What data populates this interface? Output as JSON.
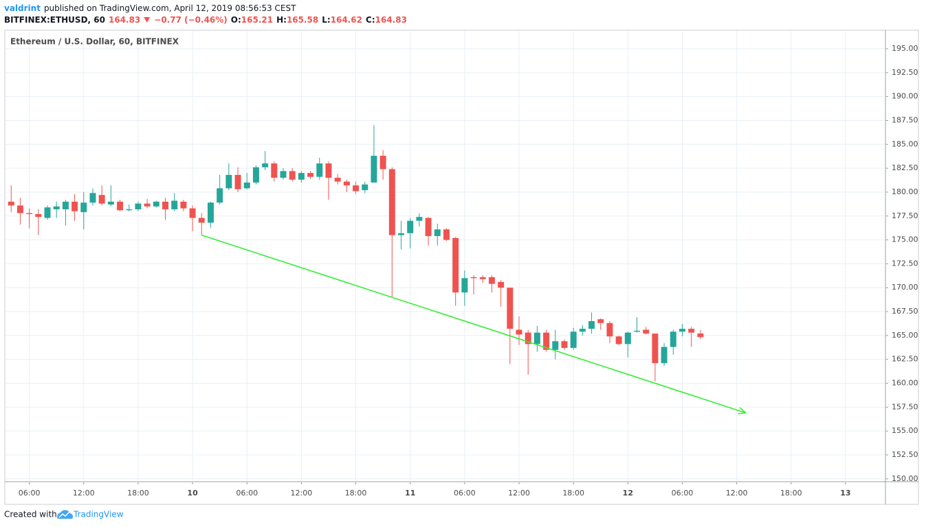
{
  "header": {
    "author": "valdrint",
    "published": "published on TradingView.com, April 12, 2019 08:56:53 CEST",
    "symbol": "BITFINEX:ETHUSD, 60",
    "last": "164.83",
    "change": "−0.77 (−0.46%)",
    "ohlc": [
      {
        "label": "O:",
        "value": "165.21"
      },
      {
        "label": "H:",
        "value": "165.58"
      },
      {
        "label": "L:",
        "value": "164.62"
      },
      {
        "label": "C:",
        "value": "164.83"
      }
    ]
  },
  "chart_data": {
    "type": "candlestick",
    "title": "Ethereum / U.S. Dollar, 60, BITFINEX",
    "up_color": "#26a69a",
    "down_color": "#ef5350",
    "grid": true,
    "x": [
      -20,
      -19,
      -18,
      -17,
      -16,
      -15,
      -14,
      -13,
      -12,
      -11,
      -10,
      -9,
      -8,
      -7,
      -6,
      -5,
      -4,
      -3,
      -2,
      -1,
      0,
      1,
      2,
      3,
      4,
      5,
      6,
      7,
      8,
      9,
      10,
      11,
      12,
      13,
      14,
      15,
      16,
      17,
      18,
      19,
      20,
      21,
      22,
      23,
      24,
      25,
      26,
      27,
      28,
      29,
      30,
      31,
      32,
      33,
      34,
      35,
      36,
      37,
      38,
      39,
      40,
      41,
      42,
      43,
      44,
      45,
      46,
      47,
      48,
      49,
      50,
      51,
      52,
      53,
      54,
      55,
      56
    ],
    "open": [
      179.0,
      178.6,
      177.8,
      177.7,
      177.3,
      178.2,
      178.2,
      179.0,
      177.9,
      178.9,
      179.7,
      178.7,
      179.0,
      178.1,
      178.2,
      178.8,
      178.5,
      179.0,
      178.2,
      179.0,
      178.3,
      177.3,
      176.8,
      178.9,
      180.4,
      181.8,
      180.4,
      181.0,
      182.6,
      183.0,
      181.5,
      182.2,
      181.3,
      182.0,
      181.6,
      183.0,
      181.5,
      181.1,
      180.7,
      180.2,
      181.0,
      183.8,
      182.4,
      175.5,
      175.7,
      177.0,
      177.3,
      175.4,
      176.1,
      175.2,
      169.5,
      171.1,
      171.1,
      171.1,
      170.6,
      170.0,
      165.6,
      165.3,
      164.1,
      165.3,
      163.5,
      164.4,
      163.7,
      165.4,
      165.7,
      166.7,
      166.3,
      164.9,
      164.1,
      165.4,
      165.6,
      165.2,
      162.1,
      163.8,
      165.4,
      165.7,
      165.21
    ],
    "high": [
      180.7,
      179.4,
      178.3,
      178.2,
      178.6,
      179.0,
      179.2,
      179.8,
      180.0,
      180.4,
      180.7,
      180.7,
      179.2,
      178.7,
      179.0,
      179.3,
      179.1,
      179.4,
      179.9,
      179.2,
      178.6,
      177.8,
      179.0,
      181.8,
      183.0,
      182.6,
      182.0,
      182.8,
      184.3,
      183.2,
      182.5,
      182.5,
      182.2,
      182.2,
      183.6,
      183.2,
      181.9,
      181.3,
      181.1,
      181.1,
      187.0,
      184.4,
      182.6,
      177.0,
      177.3,
      177.8,
      177.4,
      176.7,
      176.2,
      175.3,
      171.8,
      171.3,
      171.3,
      171.3,
      170.8,
      170.0,
      167.0,
      165.6,
      166.0,
      165.6,
      165.6,
      164.6,
      165.8,
      166.1,
      167.4,
      166.8,
      166.5,
      165.0,
      165.4,
      166.9,
      165.9,
      165.2,
      164.2,
      165.6,
      166.2,
      165.9,
      165.58
    ],
    "low": [
      177.9,
      176.6,
      176.2,
      175.5,
      177.1,
      177.3,
      176.5,
      177.0,
      176.1,
      178.6,
      178.6,
      178.5,
      178.0,
      178.0,
      178.0,
      178.3,
      178.4,
      177.1,
      178.0,
      178.0,
      175.9,
      175.5,
      176.3,
      178.7,
      180.2,
      180.0,
      180.3,
      180.8,
      182.3,
      181.1,
      181.3,
      181.1,
      181.0,
      181.4,
      181.3,
      179.2,
      180.8,
      180.0,
      179.8,
      179.9,
      181.0,
      181.3,
      169.0,
      174.0,
      174.1,
      176.4,
      174.4,
      174.4,
      174.9,
      168.1,
      168.1,
      169.3,
      170.5,
      169.5,
      168.0,
      162.0,
      164.0,
      160.9,
      163.3,
      163.3,
      162.5,
      163.5,
      163.5,
      165.0,
      165.2,
      165.6,
      164.2,
      164.0,
      162.7,
      165.3,
      165.1,
      160.2,
      161.8,
      163.0,
      164.9,
      163.8,
      164.62
    ],
    "close": [
      178.6,
      177.8,
      177.7,
      177.4,
      178.4,
      178.5,
      179.0,
      178.0,
      178.9,
      179.9,
      178.8,
      179.0,
      178.1,
      178.2,
      178.8,
      178.5,
      179.0,
      178.2,
      179.1,
      178.3,
      177.3,
      176.8,
      178.9,
      180.4,
      181.8,
      180.3,
      181.0,
      182.6,
      183.0,
      181.5,
      182.2,
      181.3,
      182.0,
      181.6,
      183.0,
      181.5,
      181.1,
      180.7,
      180.1,
      180.8,
      183.8,
      182.4,
      175.5,
      175.7,
      177.0,
      177.4,
      175.4,
      176.1,
      175.0,
      169.5,
      171.0,
      171.0,
      170.9,
      170.4,
      170.0,
      165.7,
      165.1,
      164.1,
      165.3,
      163.5,
      164.4,
      163.7,
      165.4,
      165.7,
      166.5,
      166.3,
      164.9,
      164.1,
      165.3,
      165.5,
      165.2,
      162.1,
      163.8,
      165.4,
      165.7,
      165.3,
      164.83
    ],
    "xlim": [
      -20.7,
      76.4
    ],
    "xticks": [
      {
        "value": -18,
        "label": "06:00"
      },
      {
        "value": -12,
        "label": "12:00"
      },
      {
        "value": -6,
        "label": "18:00"
      },
      {
        "value": 0,
        "label": "10"
      },
      {
        "value": 6,
        "label": "06:00"
      },
      {
        "value": 12,
        "label": "12:00"
      },
      {
        "value": 18,
        "label": "18:00"
      },
      {
        "value": 24,
        "label": "11"
      },
      {
        "value": 30,
        "label": "06:00"
      },
      {
        "value": 36,
        "label": "12:00"
      },
      {
        "value": 42,
        "label": "18:00"
      },
      {
        "value": 48,
        "label": "12"
      },
      {
        "value": 54,
        "label": "06:00"
      },
      {
        "value": 60,
        "label": "12:00"
      },
      {
        "value": 66,
        "label": "18:00"
      },
      {
        "value": 72,
        "label": "13"
      }
    ],
    "ylim": [
      149.7,
      196.94
    ],
    "yticks": [
      {
        "value": 150,
        "label": "150.00"
      },
      {
        "value": 152.5,
        "label": "152.50"
      },
      {
        "value": 155,
        "label": "155.00"
      },
      {
        "value": 157.5,
        "label": "157.50"
      },
      {
        "value": 160,
        "label": "160.00"
      },
      {
        "value": 162.5,
        "label": "162.50"
      },
      {
        "value": 165,
        "label": "165.00"
      },
      {
        "value": 167.5,
        "label": "167.50"
      },
      {
        "value": 170,
        "label": "170.00"
      },
      {
        "value": 172.5,
        "label": "172.50"
      },
      {
        "value": 175,
        "label": "175.00"
      },
      {
        "value": 177.5,
        "label": "177.50"
      },
      {
        "value": 180,
        "label": "180.00"
      },
      {
        "value": 182.5,
        "label": "182.50"
      },
      {
        "value": 185,
        "label": "185.00"
      },
      {
        "value": 187.5,
        "label": "187.50"
      },
      {
        "value": 190,
        "label": "190.00"
      },
      {
        "value": 192.5,
        "label": "192.50"
      },
      {
        "value": 195,
        "label": "195.00"
      }
    ],
    "trend_line": {
      "x": [
        1,
        61
      ],
      "y": [
        175.5,
        156.9
      ],
      "color": "#33ee33"
    }
  },
  "footer": {
    "text": "Created with",
    "brand": "TradingView"
  }
}
